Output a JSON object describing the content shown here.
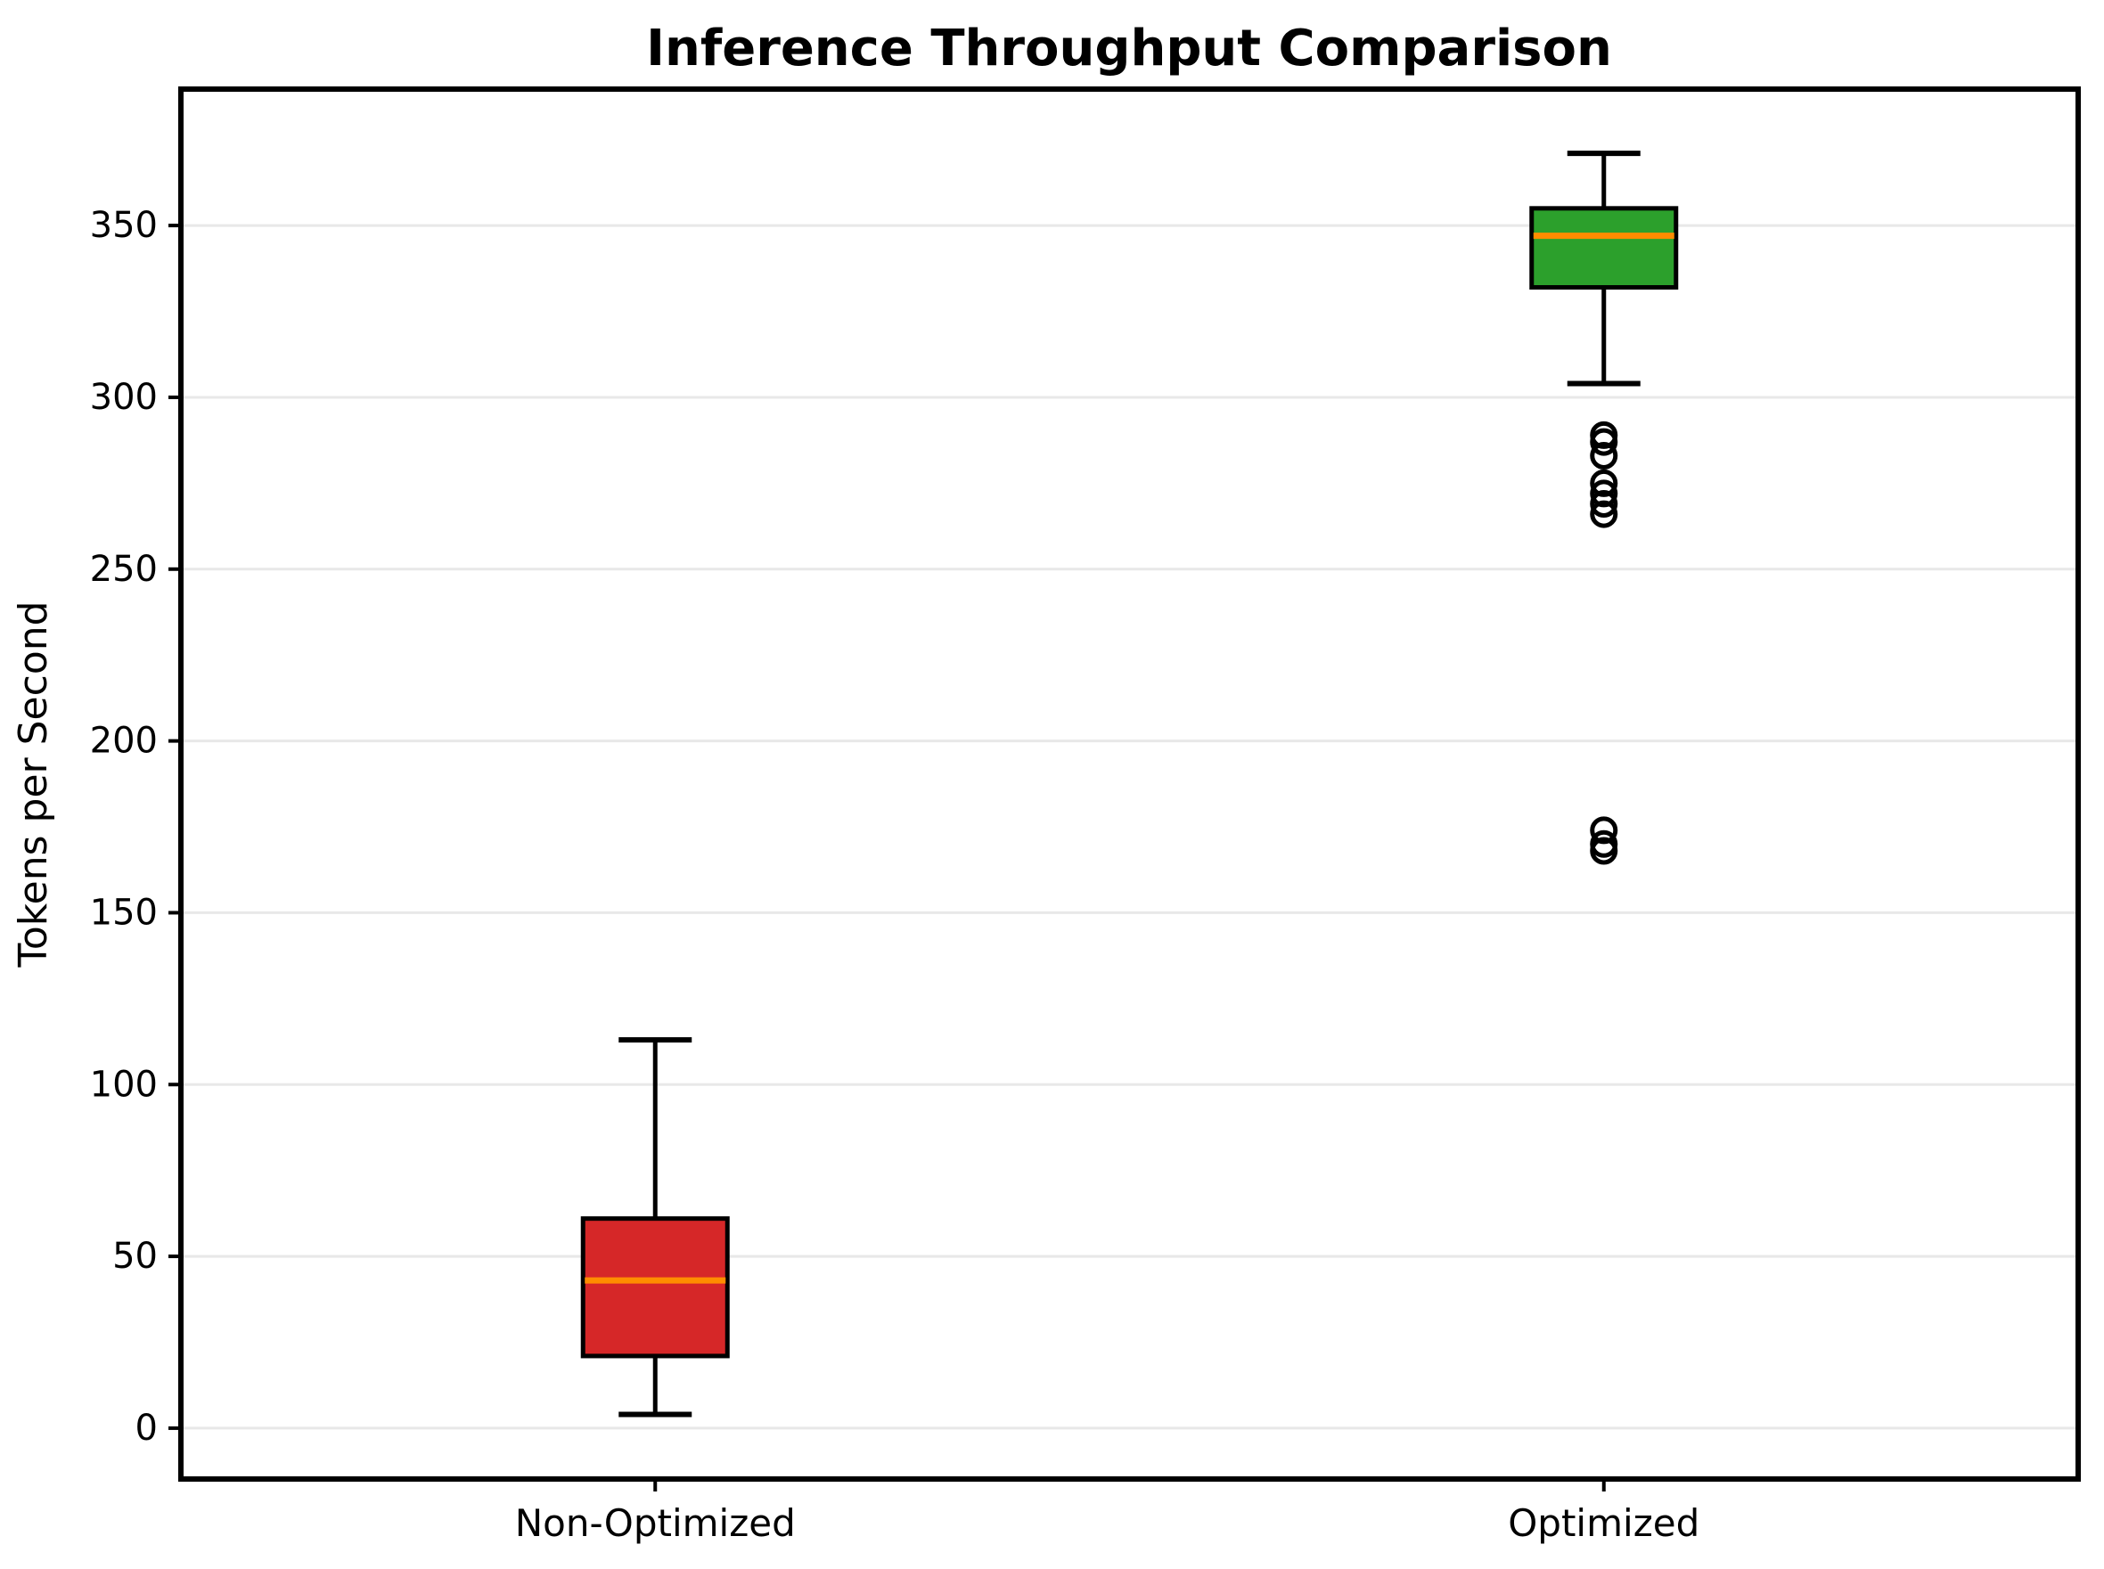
{
  "figure": {
    "title": "Inference Throughput Comparison",
    "background": "#ffffff"
  },
  "chart_data": {
    "type": "boxplot",
    "title": "Inference Throughput Comparison",
    "xlabel": "",
    "ylabel": "Tokens per Second",
    "categories": [
      "Non-Optimized",
      "Optimized"
    ],
    "series": [
      {
        "name": "Non-Optimized",
        "whisker_low": 4,
        "q1": 21,
        "median": 43,
        "q3": 61,
        "whisker_high": 113,
        "outliers": [],
        "box_color": "#d62728"
      },
      {
        "name": "Optimized",
        "whisker_low": 304,
        "q1": 332,
        "median": 347,
        "q3": 355,
        "whisker_high": 371,
        "outliers": [
          289,
          287,
          283,
          275,
          272,
          269,
          266,
          174,
          170,
          168
        ],
        "box_color": "#2ca02c"
      }
    ],
    "yticks": [
      0,
      50,
      100,
      150,
      200,
      250,
      300,
      350
    ],
    "ylim": [
      -14.8,
      389.7
    ],
    "grid": "horizontal",
    "legend_position": "none",
    "colors": {
      "median_line": "#ff8c00",
      "box_edge": "#000000",
      "whisker": "#000000",
      "outlier_edge": "#000000",
      "gridline": "#e8e8e8",
      "spine": "#000000",
      "text": "#000000",
      "plot_background": "#ffffff"
    }
  }
}
